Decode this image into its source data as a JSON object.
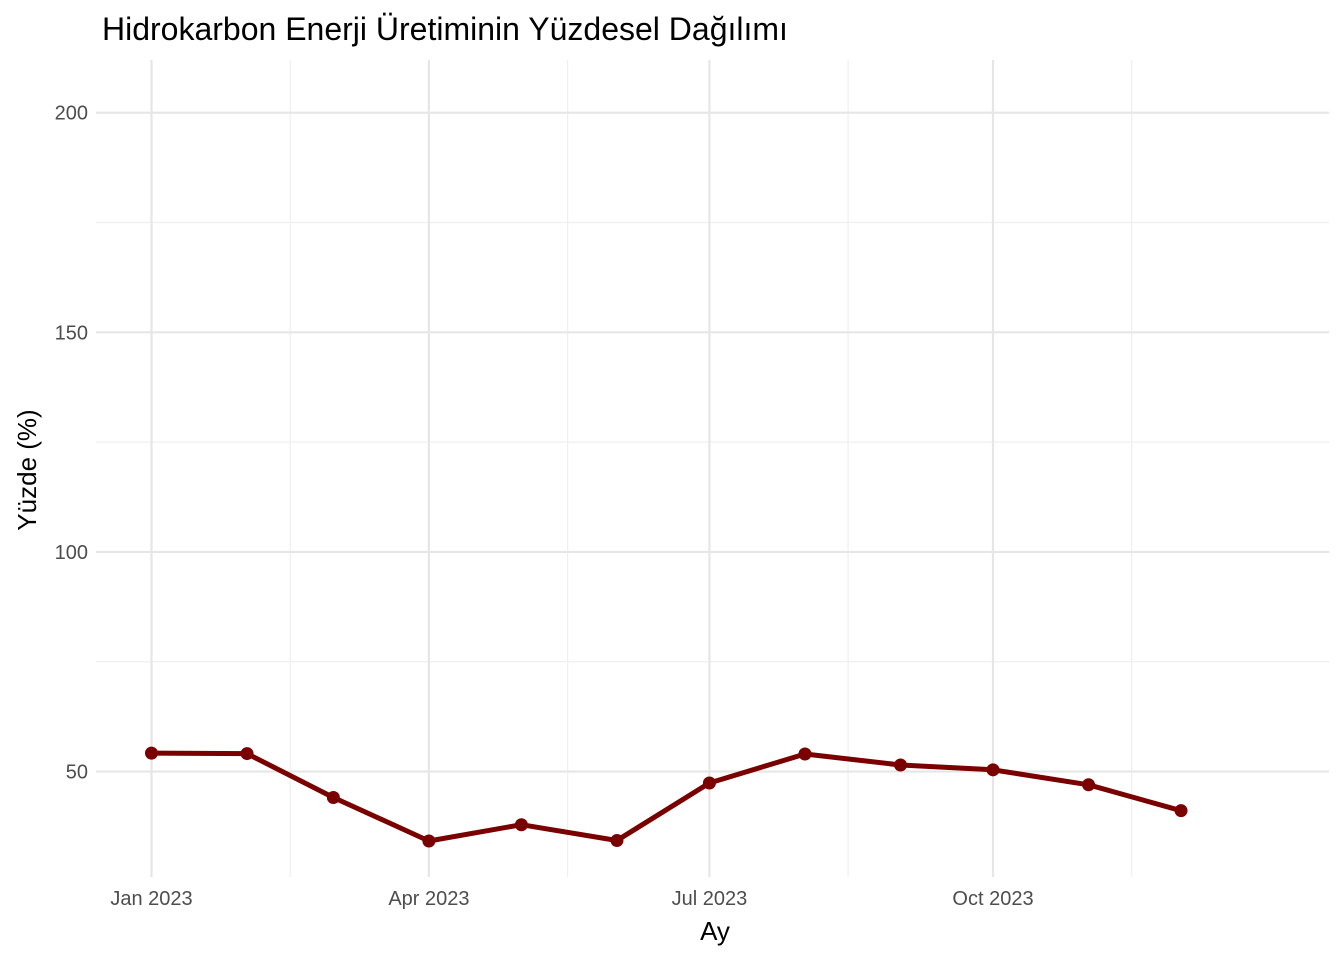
{
  "chart_data": {
    "type": "line",
    "title": "Hidrokarbon Enerji Üretiminin Yüzdesel Dağılımı",
    "xlabel": "Ay",
    "ylabel": "Yüzde (%)",
    "x_ticks": [
      {
        "date": "2023-01-01",
        "label": "Jan 2023"
      },
      {
        "date": "2023-04-01",
        "label": "Apr 2023"
      },
      {
        "date": "2023-07-01",
        "label": "Jul 2023"
      },
      {
        "date": "2023-10-01",
        "label": "Oct 2023"
      }
    ],
    "y_ticks": [
      50,
      100,
      150,
      200
    ],
    "ylim": [
      26,
      212
    ],
    "xlim": [
      "2022-12-14",
      "2024-01-18"
    ],
    "grid": true,
    "series": [
      {
        "color": "#7a0000",
        "x": [
          "2023-01-01",
          "2023-02-01",
          "2023-03-01",
          "2023-04-01",
          "2023-05-01",
          "2023-06-01",
          "2023-07-01",
          "2023-08-01",
          "2023-09-01",
          "2023-10-01",
          "2023-11-01",
          "2023-12-01"
        ],
        "values": [
          54.2,
          54.1,
          44.1,
          34.2,
          37.9,
          34.3,
          47.4,
          54.0,
          51.5,
          50.4,
          47.0,
          41.1
        ]
      }
    ]
  }
}
